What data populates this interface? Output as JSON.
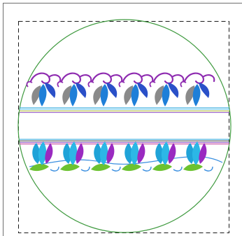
{
  "canvas": {
    "background": "#ffffff",
    "border_color": "#6e6e6e"
  },
  "hoop": {
    "shape": "circle",
    "color": "#3f9a3f"
  },
  "design_bounds": {
    "style": "dashed",
    "color": "#1a1a1a"
  },
  "embroidery": {
    "pattern": "floral-border-strip",
    "motif_count_per_row": 6,
    "rows": [
      {
        "name": "top-row",
        "orientation": "upright",
        "colors": {
          "petal_back": "#8a8a8a",
          "petal_left": "#1e7fd8",
          "petal_right": "#2a50c8",
          "stem": "#8e2bb0",
          "swirl": "#8e2bb0"
        }
      },
      {
        "name": "bottom-row",
        "orientation": "upright",
        "colors": {
          "petal_back": "#1fa3d8",
          "petal_left": "#2cb7e6",
          "petal_right": "#9a2ac0",
          "leaf": "#6cc230",
          "vine": "#3a8fe0"
        }
      }
    ],
    "bands": [
      {
        "name": "upper-band",
        "stripe_colors": [
          "#1ea0d8",
          "#7ad0f0",
          "#b9bf4a",
          "#9a62c8"
        ]
      },
      {
        "name": "lower-band",
        "stripe_colors": [
          "#1ea0d8",
          "#5a5a5a",
          "#9a62c8",
          "#c64aa0"
        ]
      }
    ]
  }
}
